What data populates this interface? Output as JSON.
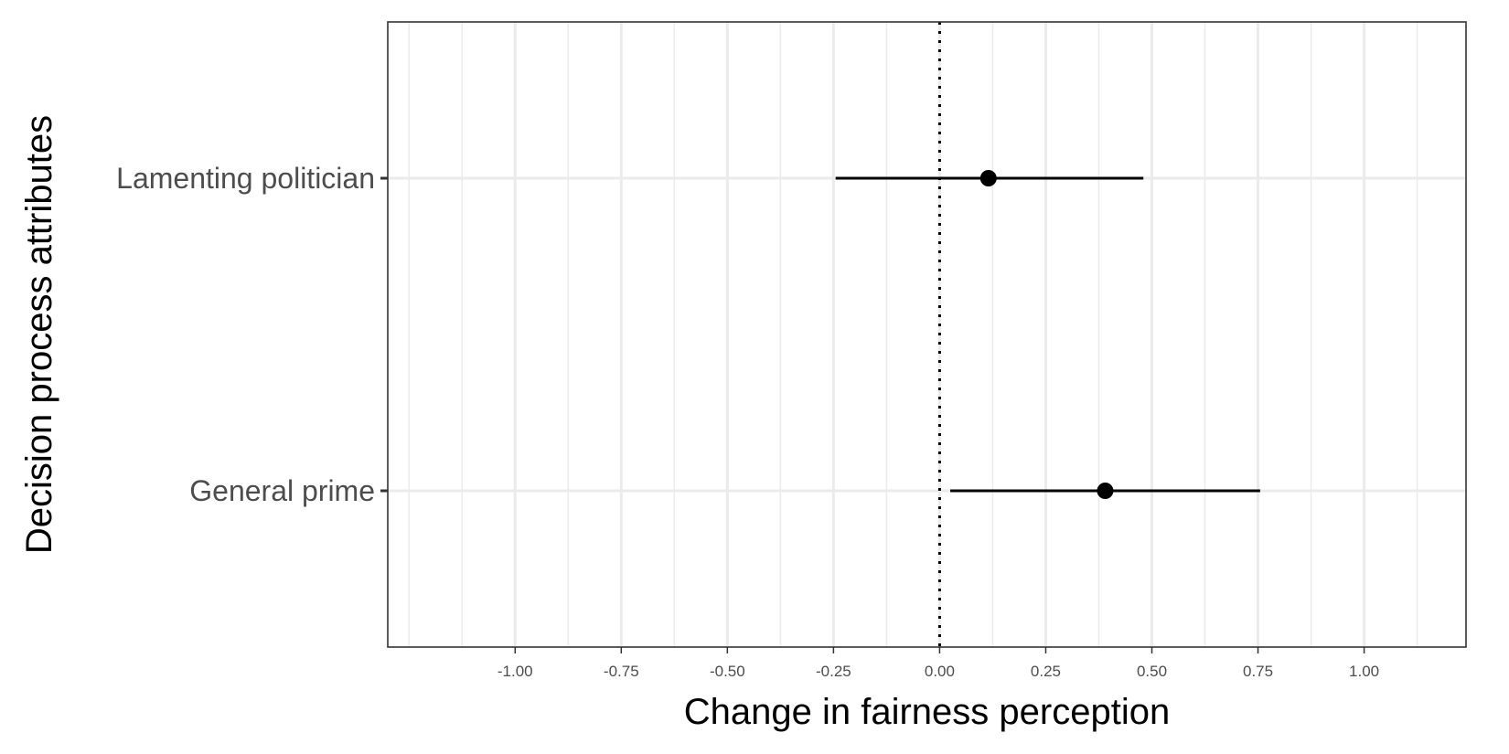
{
  "chart_data": {
    "type": "forest",
    "title": "",
    "xlabel": "Change in fairness perception",
    "ylabel": "Decision process attributes",
    "xlim": [
      -1.3,
      1.24
    ],
    "x_ticks": [
      -1.0,
      -0.75,
      -0.5,
      -0.25,
      0.0,
      0.25,
      0.5,
      0.75,
      1.0
    ],
    "x_tick_labels": [
      "-1.00",
      "-0.75",
      "-0.50",
      "-0.25",
      "0.00",
      "0.25",
      "0.50",
      "0.75",
      "1.00"
    ],
    "x_minor_ticks": [
      -1.25,
      -1.125,
      -0.875,
      -0.625,
      -0.375,
      -0.125,
      0.125,
      0.375,
      0.625,
      0.875,
      1.125
    ],
    "reference_line": {
      "x": 0,
      "style": "dotted"
    },
    "categories": [
      "Lamenting politician",
      "General prime"
    ],
    "estimates": [
      {
        "label": "Lamenting politician",
        "estimate": 0.115,
        "lower": -0.245,
        "upper": 0.48
      },
      {
        "label": "General prime",
        "estimate": 0.39,
        "lower": 0.025,
        "upper": 0.755
      }
    ],
    "grid": true,
    "legend": "none",
    "colors": {
      "point": "#000000",
      "grid": "#ebebeb",
      "panel_border": "#333333",
      "text": "#4d4d4d"
    }
  }
}
